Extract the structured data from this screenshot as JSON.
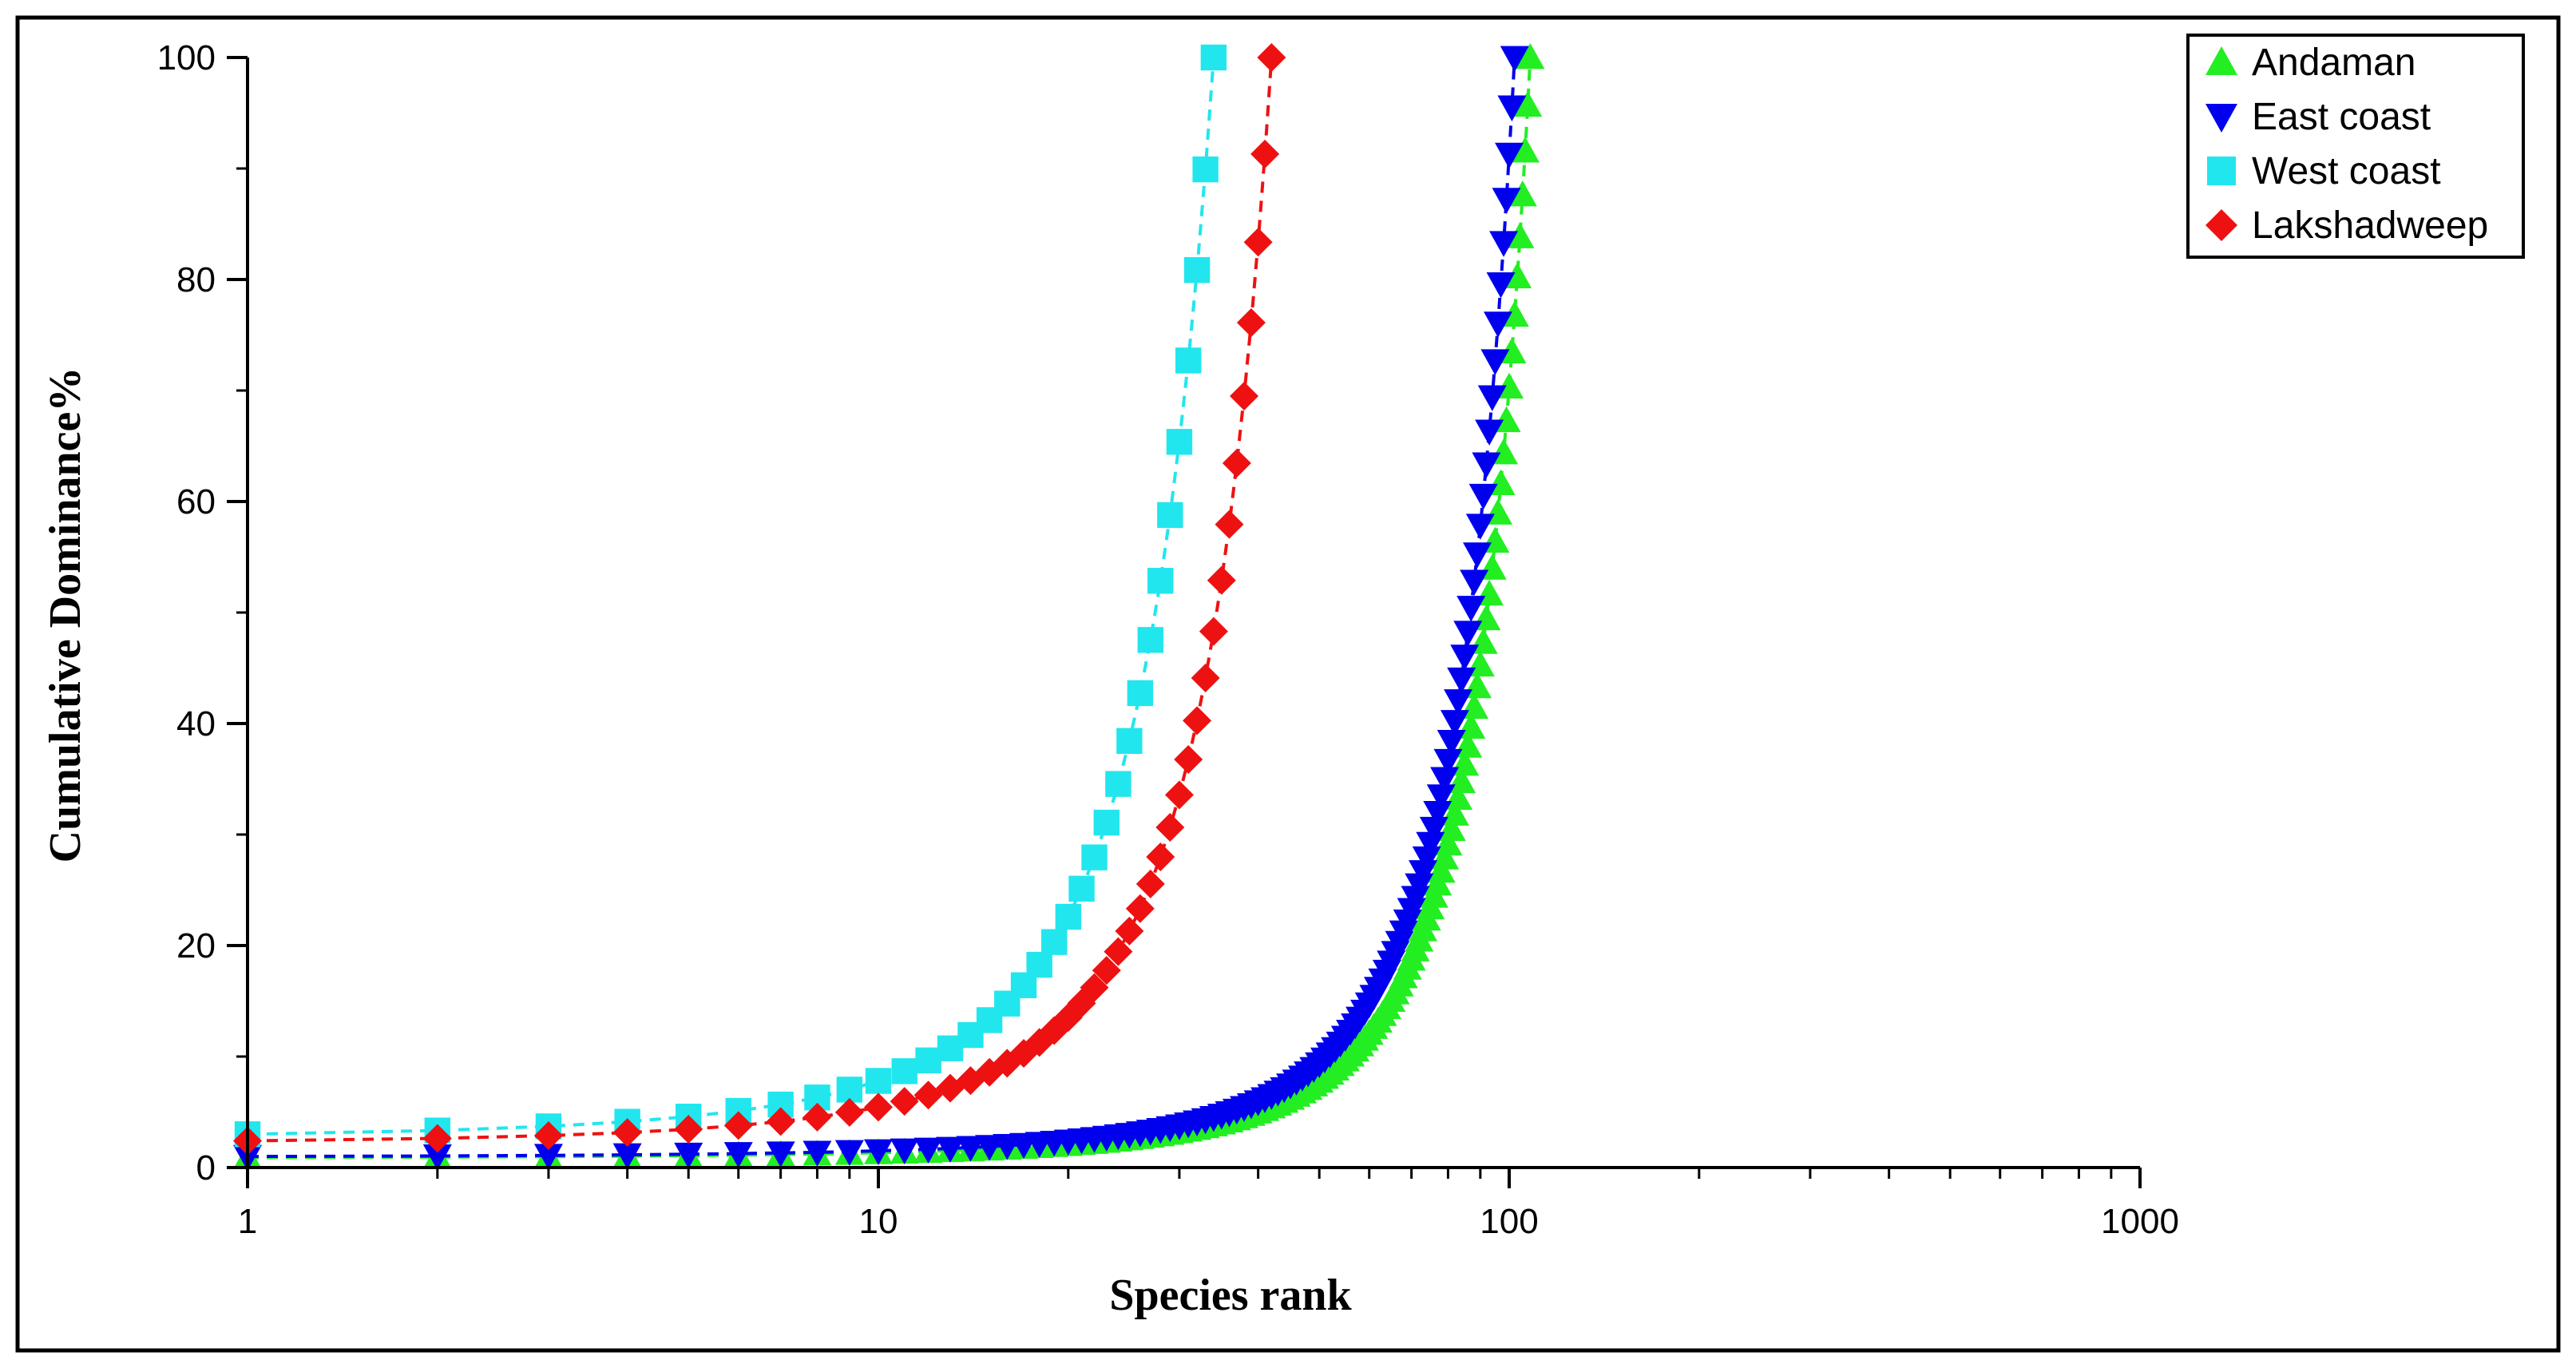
{
  "chart_data": {
    "type": "line",
    "title": "",
    "xlabel": "Species rank",
    "ylabel": "Cumulative Dominance%",
    "xscale": "log",
    "xlim": [
      1,
      1000
    ],
    "ylim": [
      0,
      100
    ],
    "xticks": [
      1,
      10,
      100,
      1000
    ],
    "xtick_labels": [
      "1",
      "10",
      "100",
      "1000"
    ],
    "yticks": [
      0,
      20,
      40,
      60,
      80,
      100
    ],
    "ytick_labels": [
      "0",
      "20",
      "40",
      "60",
      "80",
      "100"
    ],
    "grid": false,
    "legend_position": "top-right",
    "series": [
      {
        "name": "Andaman",
        "marker": "triangle-up",
        "color": "#22ee22",
        "line_style": "dashed",
        "species_count": 108,
        "cumulative_start": 0.9,
        "cumulative_end": 100
      },
      {
        "name": "East coast",
        "marker": "triangle-down",
        "color": "#0000ee",
        "line_style": "dashed",
        "species_count": 102,
        "cumulative_start": 1.0,
        "cumulative_end": 100
      },
      {
        "name": "West coast",
        "marker": "square",
        "color": "#22e6ee",
        "line_style": "dashed",
        "species_count": 34,
        "cumulative_start": 3.0,
        "cumulative_end": 100
      },
      {
        "name": "Lakshadweep",
        "marker": "diamond",
        "color": "#ee1111",
        "line_style": "dashed",
        "species_count": 42,
        "cumulative_start": 2.4,
        "cumulative_end": 100
      }
    ]
  }
}
